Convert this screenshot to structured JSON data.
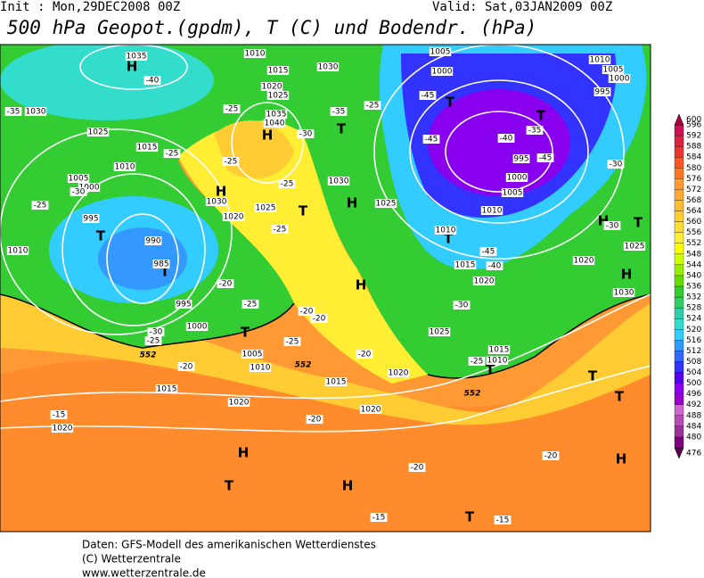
{
  "header": {
    "init": "Init : Mon,29DEC2008 00Z",
    "valid": "Valid: Sat,03JAN2009 00Z",
    "title": "500 hPa Geopot.(gpdm), T (C) und Bodendr. (hPa)"
  },
  "footer": [
    "Daten: GFS-Modell des amerikanischen Wetterdienstes",
    "(C) Wetterzentrale",
    "www.wetterzentrale.de"
  ],
  "map": {
    "pressure_systems": [
      "H",
      "T",
      "H",
      "H",
      "H",
      "T",
      "T",
      "T",
      "H",
      "T",
      "T",
      "T",
      "H",
      "T",
      "H",
      "T",
      "T",
      "T",
      "H",
      "H",
      "T",
      "H",
      "T",
      "T"
    ],
    "isobar_labels": [
      "1035",
      "1030",
      "1025",
      "1015",
      "1010",
      "1005",
      "1000",
      "995",
      "990",
      "985",
      "995",
      "1000",
      "1010",
      "1020",
      "1015",
      "1010",
      "1030",
      "1025",
      "1035",
      "1040",
      "1030",
      "1020",
      "1025",
      "1030",
      "1025",
      "1005",
      "1000",
      "1010",
      "1005",
      "1000",
      "995",
      "995",
      "1000",
      "1005",
      "1010",
      "1010",
      "1015",
      "1020",
      "1020",
      "1025",
      "1030",
      "1025",
      "1015",
      "1010",
      "1020",
      "1015",
      "1020",
      "1020",
      "1015",
      "1020",
      "1005",
      "1010"
    ],
    "temperature_labels": [
      "-40",
      "-35",
      "-25",
      "-30",
      "-25",
      "-20",
      "-25",
      "-30",
      "-25",
      "-20",
      "-25",
      "-30",
      "-25",
      "-25",
      "-25",
      "-20",
      "-20",
      "-25",
      "-20",
      "-35",
      "-45",
      "-45",
      "-40",
      "-35",
      "-45",
      "-30",
      "-45",
      "-40",
      "-30",
      "-25",
      "-20",
      "-15",
      "-20",
      "-20",
      "-15",
      "-15",
      "-30",
      "-25"
    ],
    "height_labels": [
      "552",
      "552",
      "552"
    ]
  },
  "colorbar": [
    {
      "label": 476,
      "color": "#5a0050"
    },
    {
      "label": 480,
      "color": "#800080"
    },
    {
      "label": 484,
      "color": "#993399"
    },
    {
      "label": 488,
      "color": "#b34db3"
    },
    {
      "label": 492,
      "color": "#cc66cc"
    },
    {
      "label": 496,
      "color": "#9900cc"
    },
    {
      "label": 500,
      "color": "#8800ee"
    },
    {
      "label": 504,
      "color": "#5500ee"
    },
    {
      "label": 508,
      "color": "#3333ff"
    },
    {
      "label": 512,
      "color": "#3366ff"
    },
    {
      "label": 516,
      "color": "#3399ff"
    },
    {
      "label": 520,
      "color": "#33ccff"
    },
    {
      "label": 524,
      "color": "#33ddcc"
    },
    {
      "label": 528,
      "color": "#33ccaa"
    },
    {
      "label": 532,
      "color": "#33cc66"
    },
    {
      "label": 536,
      "color": "#33cc33"
    },
    {
      "label": 540,
      "color": "#66dd00"
    },
    {
      "label": 544,
      "color": "#99ee00"
    },
    {
      "label": 548,
      "color": "#ccff00"
    },
    {
      "label": 552,
      "color": "#ffff00"
    },
    {
      "label": 556,
      "color": "#ffee33"
    },
    {
      "label": 560,
      "color": "#ffdd33"
    },
    {
      "label": 564,
      "color": "#ffcc33"
    },
    {
      "label": 568,
      "color": "#ffbb33"
    },
    {
      "label": 572,
      "color": "#ffaa33"
    },
    {
      "label": 576,
      "color": "#ff9933"
    },
    {
      "label": 580,
      "color": "#ff7722"
    },
    {
      "label": 584,
      "color": "#ff5522"
    },
    {
      "label": 588,
      "color": "#ee3333"
    },
    {
      "label": 592,
      "color": "#dd2244"
    },
    {
      "label": 596,
      "color": "#cc1155"
    },
    {
      "label": 600,
      "color": "#aa0044"
    }
  ]
}
